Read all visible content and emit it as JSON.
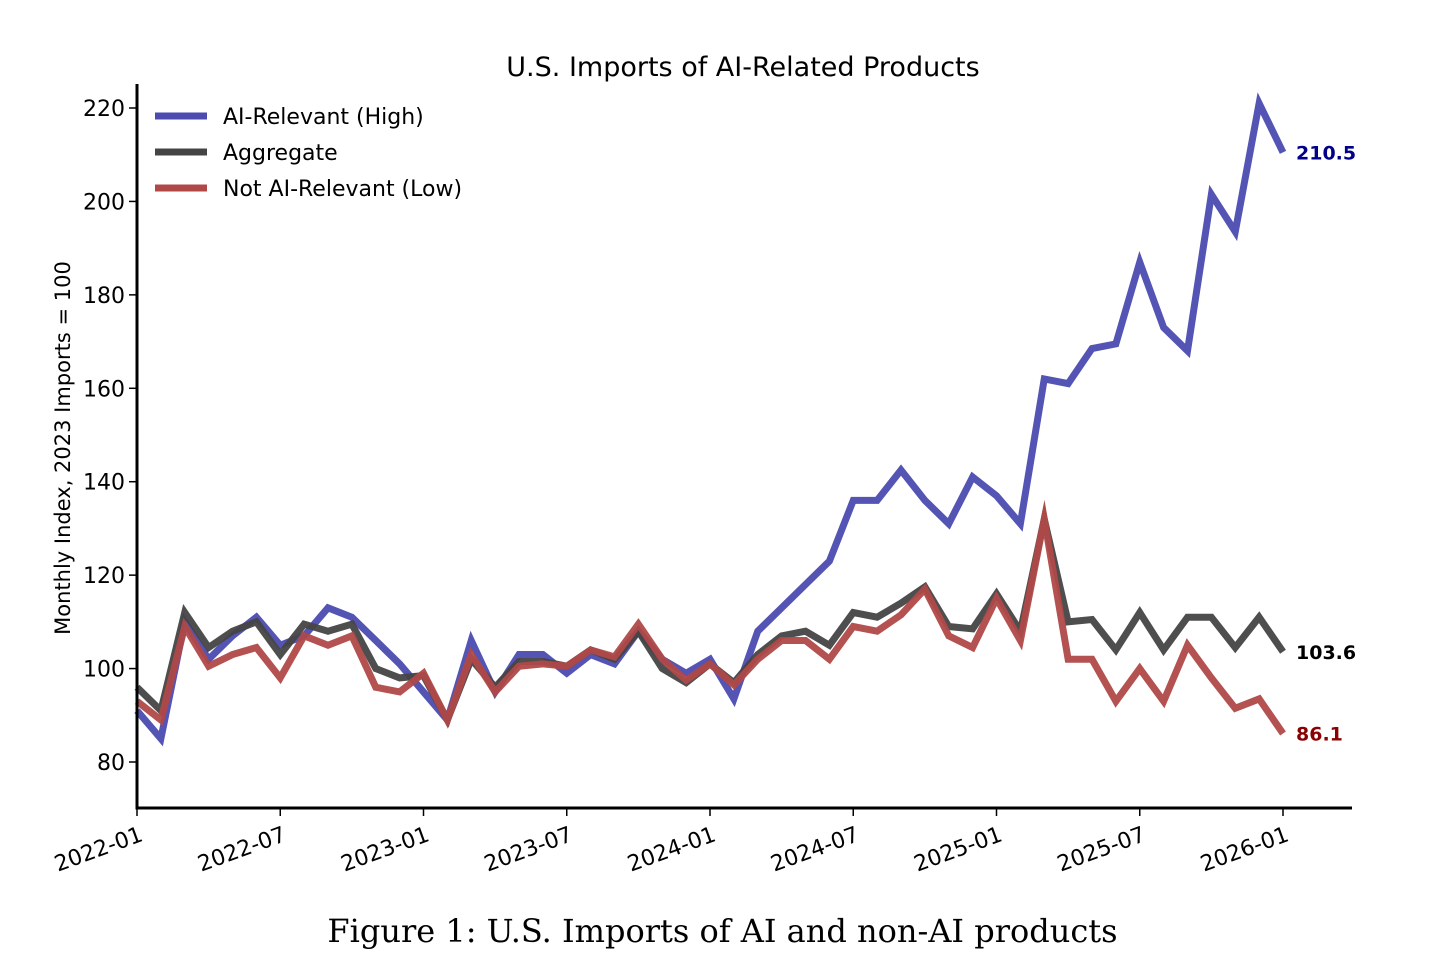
{
  "caption": "Figure 1: U.S. Imports of AI and non-AI products",
  "chart_data": {
    "type": "line",
    "title": "U.S. Imports of AI-Related Products",
    "xlabel": "",
    "ylabel": "Monthly Index, 2023 Imports = 100",
    "ylim": [
      70,
      225
    ],
    "xlim": [
      "2022-01",
      "2026-01"
    ],
    "grid": false,
    "legend_position": "top-left",
    "yticks": [
      80,
      100,
      120,
      140,
      160,
      180,
      200,
      220
    ],
    "xticks": [
      "2022-01",
      "2022-07",
      "2023-01",
      "2023-07",
      "2024-01",
      "2024-07",
      "2025-01",
      "2025-07",
      "2026-01"
    ],
    "x": [
      "2022-01",
      "2022-02",
      "2022-03",
      "2022-04",
      "2022-05",
      "2022-06",
      "2022-07",
      "2022-08",
      "2022-09",
      "2022-10",
      "2022-11",
      "2022-12",
      "2023-01",
      "2023-02",
      "2023-03",
      "2023-04",
      "2023-05",
      "2023-06",
      "2023-07",
      "2023-08",
      "2023-09",
      "2023-10",
      "2023-11",
      "2023-12",
      "2024-01",
      "2024-02",
      "2024-03",
      "2024-04",
      "2024-05",
      "2024-06",
      "2024-07",
      "2024-08",
      "2024-09",
      "2024-10",
      "2024-11",
      "2024-12",
      "2025-01",
      "2025-02",
      "2025-03",
      "2025-04",
      "2025-05",
      "2025-06",
      "2025-07",
      "2025-08",
      "2025-09",
      "2025-10",
      "2025-11",
      "2025-12",
      "2026-01"
    ],
    "series": [
      {
        "name": "AI-Relevant (High)",
        "color": "#4b4bb0",
        "end_label": "210.5",
        "end_label_color": "#00008b",
        "values": [
          91,
          85,
          110,
          102,
          107,
          111,
          105,
          107,
          113,
          111,
          106,
          101,
          95,
          89,
          106,
          95,
          103,
          103,
          99,
          103,
          101,
          108,
          102,
          99,
          102,
          93.5,
          108,
          113,
          118,
          123,
          136,
          136,
          142.5,
          136,
          131,
          141,
          137,
          131,
          162,
          161,
          168.5,
          169.5,
          187,
          173,
          168,
          201.5,
          193.5,
          221,
          210.5
        ]
      },
      {
        "name": "Aggregate",
        "color": "#444444",
        "end_label": "103.6",
        "end_label_color": "#000000",
        "values": [
          96,
          91,
          112,
          104.5,
          108,
          110,
          103,
          109.5,
          108,
          109.5,
          100,
          98,
          98.5,
          89,
          102,
          96,
          101.5,
          101.5,
          100.5,
          104,
          102,
          108,
          100,
          97,
          101,
          97,
          103,
          107,
          108,
          105,
          112,
          111,
          114,
          117.5,
          109,
          108.5,
          116,
          108,
          132,
          110,
          110.5,
          104,
          112,
          104,
          111,
          111,
          104.5,
          111,
          103.6
        ]
      },
      {
        "name": "Not AI-Relevant (Low)",
        "color": "#b04848",
        "end_label": "86.1",
        "end_label_color": "#8b0000",
        "values": [
          93,
          89,
          109,
          100.5,
          103,
          104.5,
          98,
          107,
          105,
          107,
          96,
          95,
          99,
          89,
          103,
          95,
          100.5,
          101,
          100.5,
          104,
          102.5,
          109.5,
          102,
          97.5,
          101,
          96.5,
          102,
          106,
          106,
          102,
          109,
          108,
          111.5,
          117,
          107,
          104.5,
          115,
          106,
          132,
          102,
          102,
          93,
          100,
          93,
          105,
          98,
          91.5,
          93.5,
          86.1
        ]
      }
    ]
  }
}
